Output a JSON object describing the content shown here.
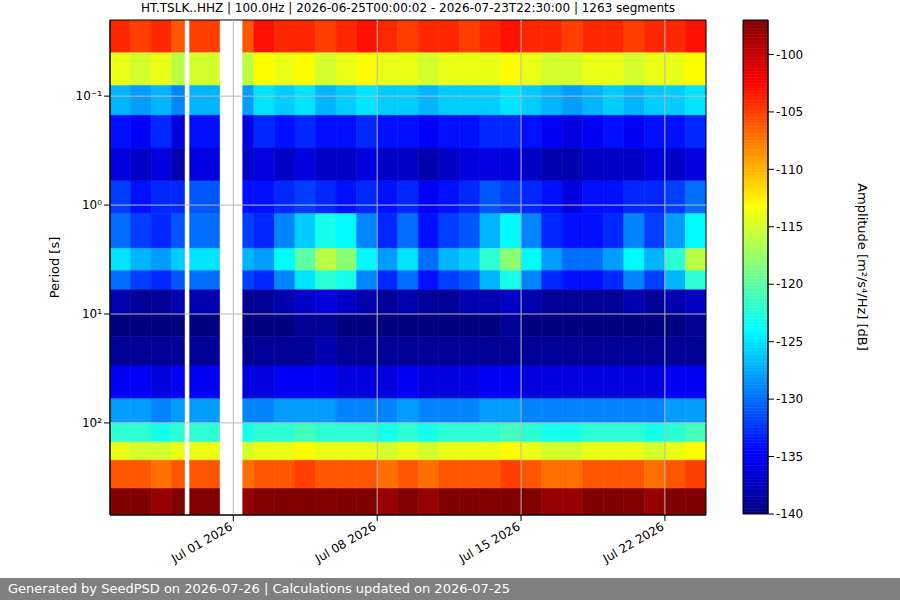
{
  "chart_data": {
    "type": "heatmap",
    "title": "HT.TSLK..HHZ | 100.0Hz | 2026-06-25T00:00:02 - 2026-07-23T22:30:00 | 1263 segments",
    "y_label": "Period [s]",
    "log": "y",
    "grid": true,
    "xlim": [
      "2026-06-25T00:00",
      "2026-07-24T00:00"
    ],
    "xticks": [
      {
        "value": "2026-07-01T00:00",
        "label": "Jul 01 2026"
      },
      {
        "value": "2026-07-08T00:00",
        "label": "Jul 08 2026"
      },
      {
        "value": "2026-07-15T00:00",
        "label": "Jul 15 2026"
      },
      {
        "value": "2026-07-22T00:00",
        "label": "Jul 22 2026"
      }
    ],
    "ylim": [
      0.02,
      700
    ],
    "yticks": [
      {
        "value": 0.1,
        "label": "10⁻¹"
      },
      {
        "value": 1,
        "label": "10⁰"
      },
      {
        "value": 10,
        "label": "10¹"
      },
      {
        "value": 100,
        "label": "10²"
      }
    ],
    "cells": {
      "x_edges": [
        "2026-06-25T00:00",
        "2026-06-26T00:00",
        "2026-06-27T00:00",
        "2026-06-28T00:00",
        "2026-06-28T15:00",
        "2026-06-28T21:00",
        "2026-06-30T08:00",
        "2026-07-01T11:00",
        "2026-07-02T00:00",
        "2026-07-03T00:00",
        "2026-07-04T00:00",
        "2026-07-05T00:00",
        "2026-07-06T00:00",
        "2026-07-07T00:00",
        "2026-07-08T00:00",
        "2026-07-09T00:00",
        "2026-07-10T00:00",
        "2026-07-11T00:00",
        "2026-07-12T00:00",
        "2026-07-13T00:00",
        "2026-07-14T00:00",
        "2026-07-15T00:00",
        "2026-07-16T00:00",
        "2026-07-17T00:00",
        "2026-07-18T00:00",
        "2026-07-19T00:00",
        "2026-07-20T00:00",
        "2026-07-21T00:00",
        "2026-07-22T00:00",
        "2026-07-23T00:00",
        "2026-07-24T00:00"
      ],
      "y_edges": [
        0.02,
        0.04,
        0.08,
        0.15,
        0.3,
        0.6,
        1.2,
        2.5,
        4,
        6,
        10,
        16,
        30,
        60,
        100,
        150,
        220,
        400,
        700
      ],
      "values": [
        [
          -104,
          -105,
          -104,
          -106,
          null,
          -105,
          null,
          -106,
          -103,
          -104,
          -104,
          -105,
          -104,
          -103,
          -104,
          -105,
          -104,
          -104,
          -105,
          -104,
          -103,
          -104,
          -104,
          -105,
          -104,
          -104,
          -105,
          -104,
          -104,
          -103
        ],
        [
          -114,
          -115,
          -114,
          -116,
          null,
          -115,
          null,
          -116,
          -113,
          -114,
          -113,
          -115,
          -114,
          -113,
          -114,
          -114,
          -115,
          -114,
          -114,
          -114,
          -113,
          -114,
          -115,
          -115,
          -114,
          -114,
          -115,
          -114,
          -114,
          -113
        ],
        [
          -127,
          -128,
          -127,
          -129,
          null,
          -127,
          null,
          -128,
          -125,
          -126,
          -125,
          -127,
          -126,
          -125,
          -126,
          -126,
          -127,
          -126,
          -126,
          -126,
          -125,
          -126,
          -127,
          -128,
          -127,
          -126,
          -127,
          -126,
          -126,
          -125
        ],
        [
          -134,
          -135,
          -133,
          -136,
          null,
          -134,
          null,
          -136,
          -133,
          -134,
          -133,
          -134,
          -134,
          -133,
          -134,
          -134,
          -135,
          -134,
          -134,
          -133,
          -133,
          -134,
          -135,
          -136,
          -135,
          -134,
          -135,
          -134,
          -134,
          -133
        ],
        [
          -136,
          -137,
          -136,
          -138,
          null,
          -136,
          null,
          -137,
          -136,
          -137,
          -136,
          -137,
          -137,
          -136,
          -137,
          -137,
          -138,
          -137,
          -136,
          -136,
          -136,
          -137,
          -138,
          -138,
          -137,
          -137,
          -137,
          -136,
          -137,
          -136
        ],
        [
          -132,
          -134,
          -133,
          -133,
          null,
          -131,
          null,
          -134,
          -134,
          -133,
          -132,
          -133,
          -134,
          -133,
          -134,
          -133,
          -135,
          -134,
          -133,
          -131,
          -132,
          -133,
          -134,
          -136,
          -134,
          -134,
          -133,
          -133,
          -132,
          -130
        ],
        [
          -130,
          -132,
          -133,
          -131,
          null,
          -130,
          null,
          -132,
          -133,
          -129,
          -126,
          -123,
          -124,
          -129,
          -133,
          -130,
          -134,
          -132,
          -131,
          -127,
          -124,
          -129,
          -133,
          -134,
          -134,
          -133,
          -129,
          -132,
          -128,
          -124
        ],
        [
          -125,
          -127,
          -128,
          -126,
          null,
          -125,
          null,
          -127,
          -128,
          -124,
          -120,
          -116,
          -118,
          -124,
          -128,
          -125,
          -130,
          -127,
          -126,
          -122,
          -118,
          -124,
          -128,
          -130,
          -130,
          -128,
          -124,
          -127,
          -122,
          -116
        ],
        [
          -130,
          -132,
          -133,
          -131,
          null,
          -130,
          null,
          -132,
          -133,
          -129,
          -125,
          -122,
          -123,
          -129,
          -133,
          -130,
          -134,
          -132,
          -131,
          -127,
          -123,
          -129,
          -133,
          -134,
          -134,
          -133,
          -129,
          -132,
          -127,
          -122
        ],
        [
          -138,
          -139,
          -139,
          -138,
          null,
          -138,
          null,
          -139,
          -139,
          -138,
          -137,
          -136,
          -137,
          -138,
          -139,
          -138,
          -139,
          -139,
          -138,
          -138,
          -137,
          -138,
          -139,
          -139,
          -139,
          -139,
          -138,
          -139,
          -138,
          -137
        ],
        [
          -140,
          -140,
          -140,
          -140,
          null,
          -140,
          null,
          -140,
          -140,
          -140,
          -139,
          -139,
          -140,
          -140,
          -140,
          -140,
          -140,
          -140,
          -140,
          -140,
          -139,
          -140,
          -140,
          -140,
          -140,
          -140,
          -140,
          -140,
          -140,
          -139
        ],
        [
          -139,
          -139,
          -139,
          -139,
          null,
          -139,
          null,
          -139,
          -139,
          -139,
          -139,
          -138,
          -139,
          -139,
          -139,
          -139,
          -139,
          -139,
          -139,
          -139,
          -139,
          -139,
          -139,
          -139,
          -139,
          -139,
          -139,
          -139,
          -139,
          -139
        ],
        [
          -135,
          -135,
          -136,
          -135,
          null,
          -135,
          null,
          -136,
          -136,
          -135,
          -135,
          -135,
          -136,
          -136,
          -136,
          -135,
          -136,
          -136,
          -136,
          -135,
          -135,
          -136,
          -136,
          -136,
          -136,
          -136,
          -136,
          -136,
          -135,
          -135
        ],
        [
          -128,
          -128,
          -129,
          -128,
          null,
          -128,
          null,
          -129,
          -129,
          -128,
          -128,
          -128,
          -129,
          -129,
          -129,
          -128,
          -129,
          -129,
          -129,
          -128,
          -128,
          -129,
          -129,
          -129,
          -129,
          -129,
          -129,
          -129,
          -128,
          -128
        ],
        [
          -122,
          -122,
          -123,
          -122,
          null,
          -122,
          null,
          -123,
          -122,
          -122,
          -121,
          -122,
          -122,
          -122,
          -123,
          -122,
          -123,
          -122,
          -122,
          -122,
          -121,
          -122,
          -123,
          -123,
          -122,
          -122,
          -122,
          -123,
          -122,
          -121
        ],
        [
          -114,
          -115,
          -115,
          -114,
          null,
          -114,
          null,
          -115,
          -114,
          -114,
          -113,
          -114,
          -114,
          -114,
          -115,
          -114,
          -115,
          -114,
          -114,
          -114,
          -113,
          -114,
          -115,
          -115,
          -114,
          -114,
          -114,
          -115,
          -114,
          -113
        ],
        [
          -106,
          -106,
          -107,
          -106,
          null,
          -106,
          null,
          -107,
          -106,
          -106,
          -105,
          -106,
          -106,
          -106,
          -107,
          -106,
          -107,
          -106,
          -106,
          -106,
          -105,
          -106,
          -107,
          -107,
          -106,
          -106,
          -106,
          -107,
          -106,
          -105
        ],
        [
          -97,
          -97,
          -98,
          -97,
          null,
          -97,
          null,
          -98,
          -97,
          -97,
          -97,
          -97,
          -97,
          -97,
          -98,
          -97,
          -98,
          -97,
          -97,
          -97,
          -97,
          -97,
          -98,
          -98,
          -97,
          -97,
          -97,
          -98,
          -97,
          -97
        ]
      ]
    },
    "colorbar": {
      "label": "Amplitude [m²/s⁴/Hz] [dB]",
      "range": [
        -140,
        -97
      ],
      "ticks": [
        -100,
        -105,
        -110,
        -115,
        -120,
        -125,
        -130,
        -135,
        -140
      ]
    }
  },
  "footer": "Generated by SeedPSD on 2026-07-26 | Calculations updated on 2026-07-25"
}
